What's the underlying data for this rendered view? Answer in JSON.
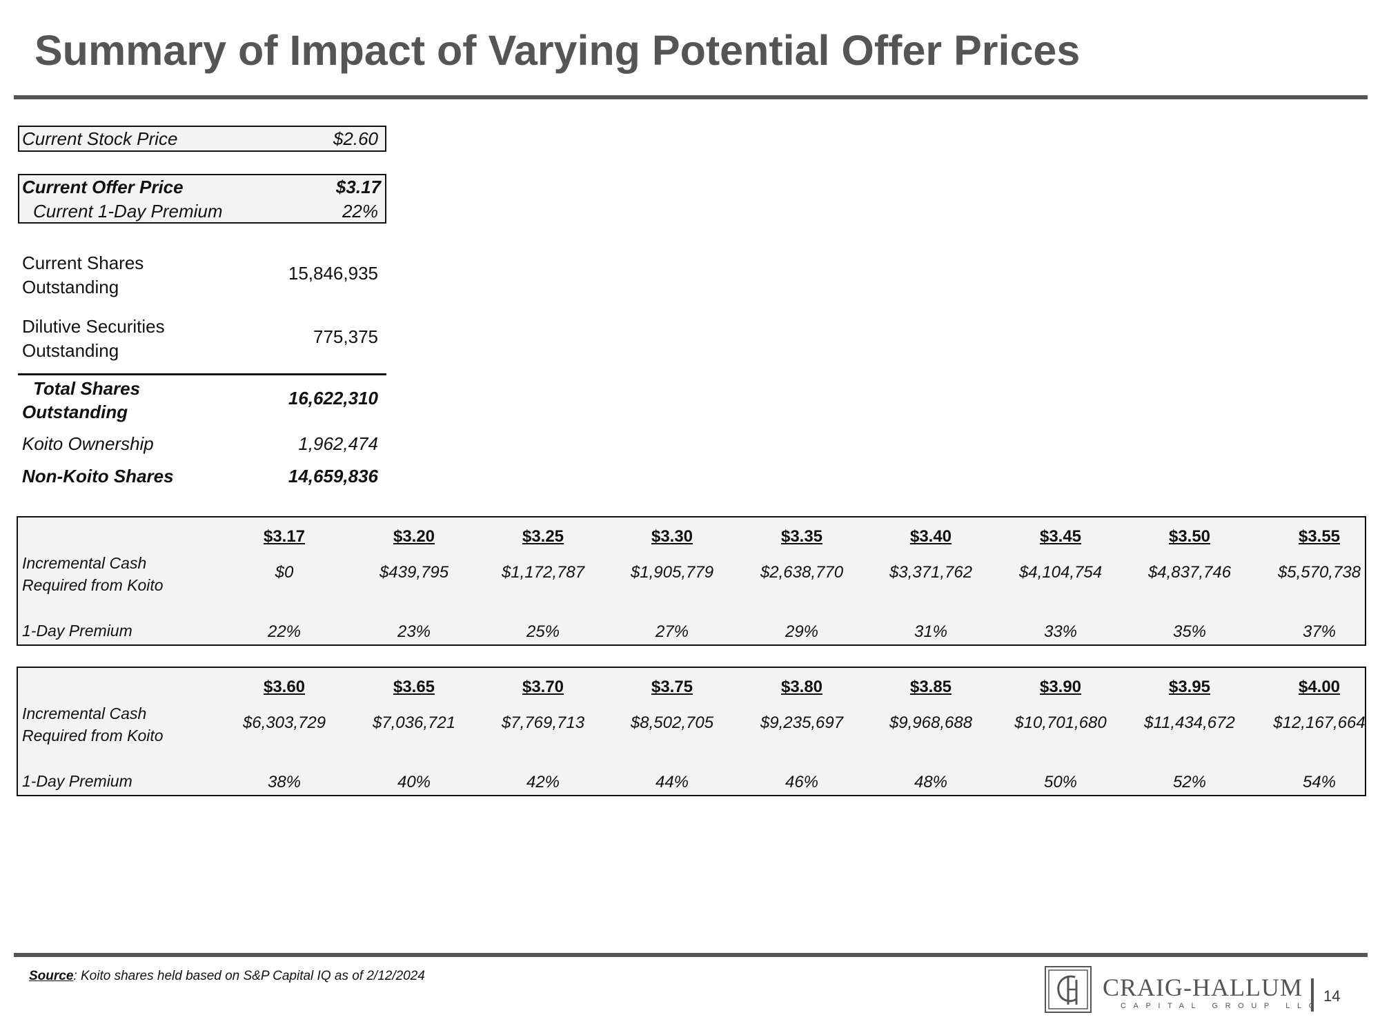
{
  "title": "Summary of Impact of Varying Potential Offer Prices",
  "summary": {
    "current_stock_price": {
      "label": "Current Stock  Price",
      "value": "$2.60"
    },
    "current_offer_price": {
      "label": "Current Offer Price",
      "value": "$3.17"
    },
    "current_premium": {
      "label": "Current 1-Day Premium",
      "value": "22%"
    },
    "shares_outstanding": {
      "label_1": "Current Shares",
      "label_2": "Outstanding",
      "value": "15,846,935"
    },
    "dilutive_securities": {
      "label_1": "Dilutive Securities",
      "label_2": "Outstanding",
      "value": "775,375"
    },
    "total_shares": {
      "label_1": "Total Shares",
      "label_2": "Outstanding",
      "value": "16,622,310"
    },
    "koito_ownership": {
      "label": "Koito Ownership",
      "value": "1,962,474"
    },
    "non_koito_shares": {
      "label": "Non-Koito Shares",
      "value": "14,659,836"
    }
  },
  "row_labels": {
    "cash_1": "Incremental Cash",
    "cash_2": "Required from Koito",
    "premium": "1-Day Premium"
  },
  "sensitivity": [
    {
      "prices": [
        "$3.17",
        "$3.20",
        "$3.25",
        "$3.30",
        "$3.35",
        "$3.40",
        "$3.45",
        "$3.50",
        "$3.55"
      ],
      "cash": [
        "$0",
        "$439,795",
        "$1,172,787",
        "$1,905,779",
        "$2,638,770",
        "$3,371,762",
        "$4,104,754",
        "$4,837,746",
        "$5,570,738"
      ],
      "premium": [
        "22%",
        "23%",
        "25%",
        "27%",
        "29%",
        "31%",
        "33%",
        "35%",
        "37%"
      ]
    },
    {
      "prices": [
        "$3.60",
        "$3.65",
        "$3.70",
        "$3.75",
        "$3.80",
        "$3.85",
        "$3.90",
        "$3.95",
        "$4.00"
      ],
      "cash": [
        "$6,303,729",
        "$7,036,721",
        "$7,769,713",
        "$8,502,705",
        "$9,235,697",
        "$9,968,688",
        "$10,701,680",
        "$11,434,672",
        "$12,167,664"
      ],
      "premium": [
        "38%",
        "40%",
        "42%",
        "44%",
        "46%",
        "48%",
        "50%",
        "52%",
        "54%"
      ]
    }
  ],
  "source": {
    "label": "Source",
    "text": ": Koito shares held based on S&P Capital IQ as of 2/12/2024"
  },
  "footer": {
    "brand": "CRAIG-HALLUM",
    "brand_sub": "CAPITAL GROUP LLC",
    "page_number": "14"
  }
}
